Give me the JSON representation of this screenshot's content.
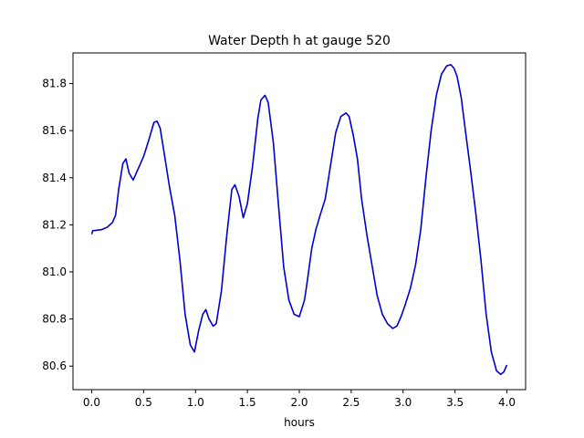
{
  "chart_data": {
    "type": "line",
    "title": "Water Depth h at gauge 520",
    "xlabel": "hours",
    "ylabel": "",
    "xlim": [
      -0.18,
      4.18
    ],
    "ylim": [
      80.5,
      81.93
    ],
    "xticks": [
      0.0,
      0.5,
      1.0,
      1.5,
      2.0,
      2.5,
      3.0,
      3.5,
      4.0
    ],
    "xtick_labels": [
      "0.0",
      "0.5",
      "1.0",
      "1.5",
      "2.0",
      "2.5",
      "3.0",
      "3.5",
      "4.0"
    ],
    "yticks": [
      80.6,
      80.8,
      81.0,
      81.2,
      81.4,
      81.6,
      81.8
    ],
    "ytick_labels": [
      "80.6",
      "80.8",
      "81.0",
      "81.2",
      "81.4",
      "81.6",
      "81.8"
    ],
    "grid": false,
    "legend": "none",
    "series": [
      {
        "color": "#0000cc",
        "x": [
          0.0,
          0.01,
          0.05,
          0.1,
          0.15,
          0.2,
          0.23,
          0.26,
          0.3,
          0.33,
          0.36,
          0.4,
          0.45,
          0.5,
          0.55,
          0.6,
          0.63,
          0.66,
          0.7,
          0.75,
          0.8,
          0.85,
          0.9,
          0.95,
          0.99,
          1.03,
          1.07,
          1.1,
          1.13,
          1.17,
          1.2,
          1.25,
          1.3,
          1.35,
          1.38,
          1.42,
          1.46,
          1.5,
          1.55,
          1.6,
          1.63,
          1.67,
          1.7,
          1.75,
          1.8,
          1.85,
          1.9,
          1.95,
          2.0,
          2.05,
          2.08,
          2.12,
          2.16,
          2.2,
          2.25,
          2.3,
          2.35,
          2.4,
          2.45,
          2.48,
          2.52,
          2.56,
          2.6,
          2.65,
          2.7,
          2.75,
          2.8,
          2.85,
          2.9,
          2.94,
          2.98,
          3.02,
          3.07,
          3.12,
          3.17,
          3.22,
          3.27,
          3.32,
          3.37,
          3.42,
          3.46,
          3.49,
          3.52,
          3.56,
          3.6,
          3.65,
          3.7,
          3.75,
          3.8,
          3.85,
          3.9,
          3.94,
          3.97,
          4.0
        ],
        "y": [
          81.16,
          81.175,
          81.177,
          81.18,
          81.19,
          81.21,
          81.24,
          81.35,
          81.46,
          81.48,
          81.42,
          81.39,
          81.44,
          81.49,
          81.56,
          81.635,
          81.64,
          81.61,
          81.5,
          81.36,
          81.24,
          81.05,
          80.82,
          80.69,
          80.66,
          80.75,
          80.82,
          80.84,
          80.8,
          80.77,
          80.78,
          80.92,
          81.15,
          81.35,
          81.37,
          81.32,
          81.23,
          81.29,
          81.45,
          81.65,
          81.73,
          81.75,
          81.72,
          81.55,
          81.28,
          81.02,
          80.88,
          80.82,
          80.81,
          80.88,
          80.97,
          81.1,
          81.18,
          81.24,
          81.31,
          81.45,
          81.59,
          81.66,
          81.675,
          81.66,
          81.58,
          81.48,
          81.31,
          81.16,
          81.03,
          80.9,
          80.82,
          80.78,
          80.76,
          80.77,
          80.81,
          80.86,
          80.93,
          81.03,
          81.18,
          81.4,
          81.6,
          81.75,
          81.84,
          81.875,
          81.88,
          81.865,
          81.83,
          81.74,
          81.6,
          81.43,
          81.25,
          81.05,
          80.82,
          80.66,
          80.58,
          80.565,
          80.575,
          80.605
        ]
      }
    ]
  }
}
